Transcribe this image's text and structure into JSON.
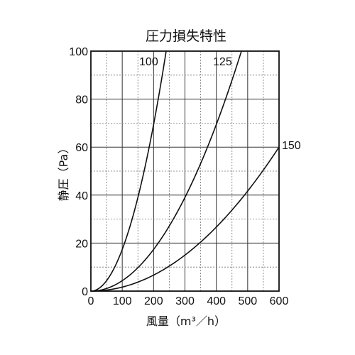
{
  "chart_data": {
    "type": "line",
    "title": "圧力損失特性",
    "xlabel": "風量（m³／h）",
    "ylabel": "静圧（Pa）",
    "xlim": [
      0,
      600
    ],
    "ylim": [
      0,
      100
    ],
    "x_ticks": [
      "0",
      "100",
      "200",
      "300",
      "400",
      "500",
      "600"
    ],
    "y_ticks": [
      "0",
      "20",
      "40",
      "60",
      "80",
      "100"
    ],
    "grid": true,
    "series": [
      {
        "name": "100",
        "x": [
          0,
          50,
          100,
          150,
          200,
          240
        ],
        "y": [
          0,
          4.3,
          17.4,
          39,
          69.4,
          100
        ]
      },
      {
        "name": "125",
        "x": [
          0,
          50,
          100,
          200,
          300,
          400,
          480
        ],
        "y": [
          0,
          1.1,
          4.3,
          17.4,
          39,
          69.4,
          100
        ]
      },
      {
        "name": "150",
        "x": [
          0,
          100,
          200,
          300,
          400,
          500,
          600
        ],
        "y": [
          0,
          1.7,
          6.7,
          15,
          26.7,
          41.7,
          60
        ]
      }
    ]
  }
}
